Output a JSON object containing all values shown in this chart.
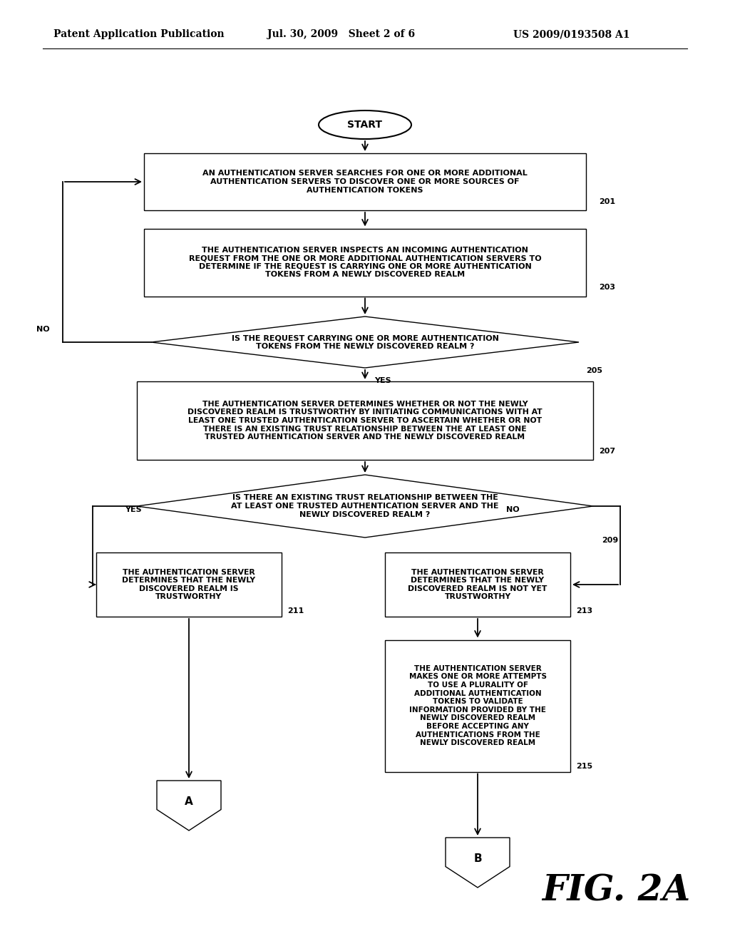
{
  "bg_color": "#ffffff",
  "header_left": "Patent Application Publication",
  "header_mid": "Jul. 30, 2009   Sheet 2 of 6",
  "header_right": "US 2009/0193508 A1",
  "fig_label": "FIG. 2A",
  "start_text": "START",
  "box201_text": "AN AUTHENTICATION SERVER SEARCHES FOR ONE OR MORE ADDITIONAL\nAUTHENTICATION SERVERS TO DISCOVER ONE OR MORE SOURCES OF\nAUTHENTICATION TOKENS",
  "box203_text": "THE AUTHENTICATION SERVER INSPECTS AN INCOMING AUTHENTICATION\nREQUEST FROM THE ONE OR MORE ADDITIONAL AUTHENTICATION SERVERS TO\nDETERMINE IF THE REQUEST IS CARRYING ONE OR MORE AUTHENTICATION\nTOKENS FROM A NEWLY DISCOVERED REALM",
  "d205_text": "IS THE REQUEST CARRYING ONE OR MORE AUTHENTICATION\nTOKENS FROM THE NEWLY DISCOVERED REALM ?",
  "box207_text": "THE AUTHENTICATION SERVER DETERMINES WHETHER OR NOT THE NEWLY\nDISCOVERED REALM IS TRUSTWORTHY BY INITIATING COMMUNICATIONS WITH AT\nLEAST ONE TRUSTED AUTHENTICATION SERVER TO ASCERTAIN WHETHER OR NOT\nTHERE IS AN EXISTING TRUST RELATIONSHIP BETWEEN THE AT LEAST ONE\nTRUSTED AUTHENTICATION SERVER AND THE NEWLY DISCOVERED REALM",
  "d209_text": "IS THERE AN EXISTING TRUST RELATIONSHIP BETWEEN THE\nAT LEAST ONE TRUSTED AUTHENTICATION SERVER AND THE\nNEWLY DISCOVERED REALM ?",
  "box211_text": "THE AUTHENTICATION SERVER\nDETERMINES THAT THE NEWLY\nDISCOVERED REALM IS\nTRUSTWORTHY",
  "box213_text": "THE AUTHENTICATION SERVER\nDETERMINES THAT THE NEWLY\nDISCOVERED REALM IS NOT YET\nTRUSTWORTHY",
  "box215_text": "THE AUTHENTICATION SERVER\nMAKES ONE OR MORE ATTEMPTS\nTO USE A PLURALITY OF\nADDITIONAL AUTHENTICATION\nTOKENS TO VALIDATE\nINFORMATION PROVIDED BY THE\nNEWLY DISCOVERED REALM\nBEFORE ACCEPTING ANY\nAUTHENTICATIONS FROM THE\nNEWLY DISCOVERED REALM"
}
